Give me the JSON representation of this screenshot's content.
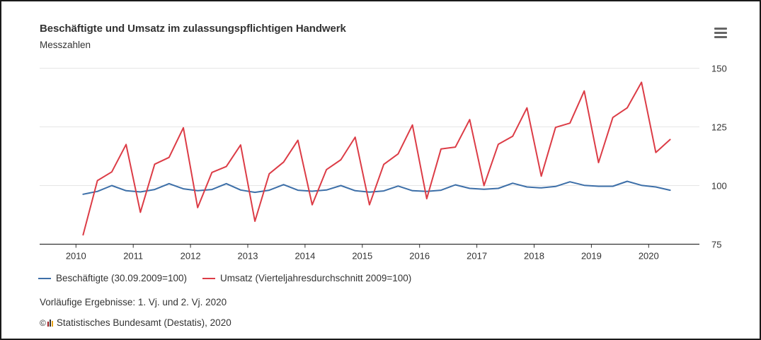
{
  "header": {
    "title": "Beschäftigte und Umsatz im zulassungspflichtigen Handwerk",
    "subtitle": "Messzahlen",
    "menu_icon": "hamburger-menu-icon"
  },
  "footer": {
    "note": "Vorläufige Ergebnisse: 1. Vj. und 2. Vj. 2020",
    "copyright_symbol": "©",
    "logo_icon": "destatis-logo-icon",
    "credits": "Statistisches Bundesamt (Destatis), 2020",
    "logo_colors": [
      "#9b1b1f",
      "#333333",
      "#e8a317"
    ]
  },
  "chart_data": {
    "type": "line",
    "title": "Beschäftigte und Umsatz im zulassungspflichtigen Handwerk",
    "subtitle": "Messzahlen",
    "xlabel": "",
    "ylabel": "",
    "y_axis_side": "right",
    "ylim": [
      75,
      150
    ],
    "yticks": [
      75,
      100,
      125,
      150
    ],
    "xlim": [
      2009.5,
      2020.9
    ],
    "xticks": [
      2010,
      2011,
      2012,
      2013,
      2014,
      2015,
      2016,
      2017,
      2018,
      2019,
      2020
    ],
    "grid": "horizontal",
    "legend_position": "bottom-left",
    "x": [
      "2010 Q1",
      "2010 Q2",
      "2010 Q3",
      "2010 Q4",
      "2011 Q1",
      "2011 Q2",
      "2011 Q3",
      "2011 Q4",
      "2012 Q1",
      "2012 Q2",
      "2012 Q3",
      "2012 Q4",
      "2013 Q1",
      "2013 Q2",
      "2013 Q3",
      "2013 Q4",
      "2014 Q1",
      "2014 Q2",
      "2014 Q3",
      "2014 Q4",
      "2015 Q1",
      "2015 Q2",
      "2015 Q3",
      "2015 Q4",
      "2016 Q1",
      "2016 Q2",
      "2016 Q3",
      "2016 Q4",
      "2017 Q1",
      "2017 Q2",
      "2017 Q3",
      "2017 Q4",
      "2018 Q1",
      "2018 Q2",
      "2018 Q3",
      "2018 Q4",
      "2019 Q1",
      "2019 Q2",
      "2019 Q3",
      "2019 Q4",
      "2020 Q1",
      "2020 Q2"
    ],
    "series": [
      {
        "name": "Beschäftigte (30.09.2009=100)",
        "color": "#3d6fa8",
        "values": [
          96.3,
          97.5,
          100.0,
          97.8,
          97.3,
          98.3,
          100.8,
          98.6,
          97.8,
          98.3,
          100.8,
          98.1,
          97.1,
          98.0,
          100.4,
          98.0,
          97.6,
          98.1,
          100.0,
          97.8,
          97.2,
          97.7,
          99.8,
          97.8,
          97.5,
          98.0,
          100.3,
          98.8,
          98.4,
          98.8,
          101.0,
          99.4,
          99.0,
          99.6,
          101.6,
          100.1,
          99.7,
          99.7,
          101.8,
          100.1,
          99.4,
          98.0
        ]
      },
      {
        "name": "Umsatz (Vierteljahresdurchschnitt 2009=100)",
        "color": "#dc3c46",
        "values": [
          79.0,
          102.1,
          105.8,
          117.5,
          88.6,
          109.1,
          112.0,
          124.6,
          90.6,
          105.6,
          108.1,
          117.3,
          84.8,
          105.0,
          110.0,
          119.3,
          91.8,
          106.8,
          111.0,
          120.6,
          91.8,
          109.0,
          113.5,
          125.8,
          94.4,
          115.6,
          116.4,
          128.1,
          100.0,
          117.6,
          121.0,
          133.1,
          104.0,
          124.8,
          126.6,
          140.3,
          109.8,
          129.0,
          133.1,
          144.0,
          114.1,
          119.6
        ]
      }
    ]
  }
}
